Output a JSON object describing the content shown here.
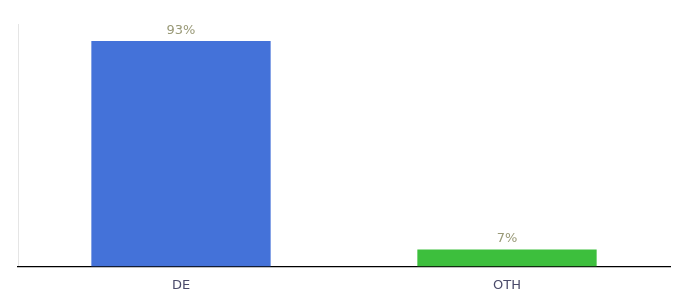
{
  "chart_data": {
    "type": "bar",
    "categories": [
      "DE",
      "OTH"
    ],
    "values": [
      93,
      7
    ],
    "value_labels": [
      "93%",
      "7%"
    ],
    "data_labels": true,
    "colors": [
      "#4472d9",
      "#3dbf3d"
    ],
    "ylim": [
      0,
      100
    ],
    "tick_labels": "x",
    "grid": false
  }
}
